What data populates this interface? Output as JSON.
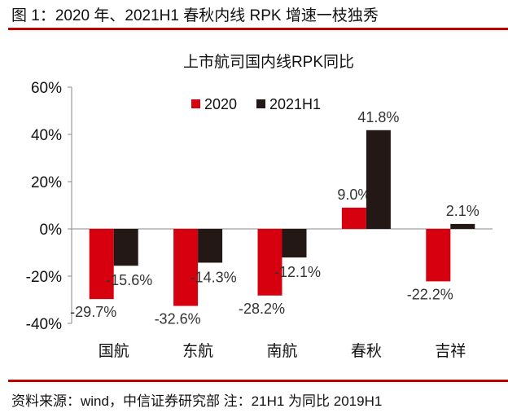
{
  "header": {
    "title": "图 1：2020 年、2021H1 春秋内线 RPK 增速一枝独秀"
  },
  "footer": {
    "source": "资料来源：wind，中信证券研究部  注：21H1 为同比 2019H1"
  },
  "chart_data": {
    "type": "bar",
    "title": "上市航司国内线RPK同比",
    "categories": [
      "国航",
      "东航",
      "南航",
      "春秋",
      "吉祥"
    ],
    "series": [
      {
        "name": "2020",
        "values": [
          -29.7,
          -32.6,
          -28.2,
          9.0,
          -22.2
        ],
        "labels": [
          "-29.7%",
          "-32.6%",
          "-28.2%",
          "9.0%",
          "-22.2%"
        ],
        "color": "#d7000f"
      },
      {
        "name": "2021H1",
        "values": [
          -15.6,
          -14.3,
          -12.1,
          41.8,
          2.1
        ],
        "labels": [
          "-15.6%",
          "-14.3%",
          "-12.1%",
          "41.8%",
          "2.1%"
        ],
        "color": "#231815"
      }
    ],
    "ylim": [
      -40,
      60
    ],
    "yticks": [
      "-40%",
      "-20%",
      "0%",
      "20%",
      "40%",
      "60%"
    ],
    "legend": "top",
    "grid": false
  }
}
